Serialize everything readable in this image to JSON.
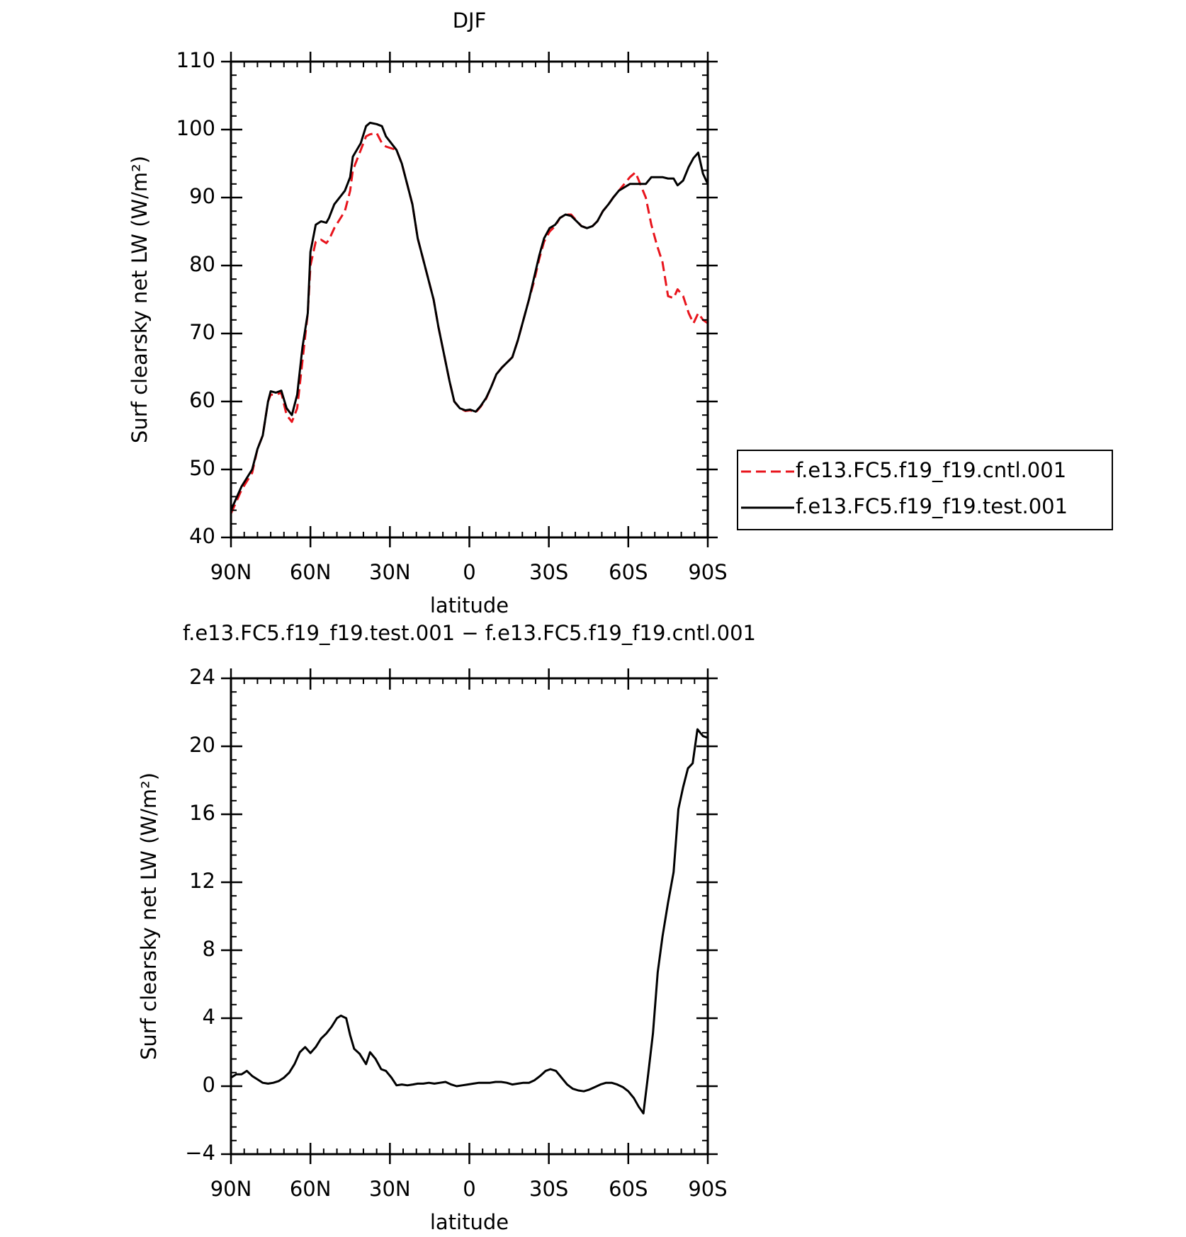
{
  "chart_data": [
    {
      "type": "line",
      "title": "DJF",
      "xlabel": "latitude",
      "ylabel": "Surf clearsky net LW (W/m²)",
      "xlim": [
        90,
        -90
      ],
      "ylim": [
        40,
        110
      ],
      "xticks": [
        {
          "value": 90,
          "label": "90N"
        },
        {
          "value": 60,
          "label": "60N"
        },
        {
          "value": 30,
          "label": "30N"
        },
        0,
        {
          "value": -30,
          "label": "30S"
        },
        {
          "value": -60,
          "label": "60S"
        },
        {
          "value": -90,
          "label": "90S"
        }
      ],
      "yticks": [
        40,
        50,
        60,
        70,
        80,
        90,
        100,
        110
      ],
      "legend": "right",
      "x": [
        90,
        86,
        82,
        80,
        78,
        76,
        75,
        73,
        71,
        69,
        67,
        65,
        63,
        61,
        60,
        58,
        56,
        54,
        53,
        51,
        47,
        45,
        44,
        41,
        39,
        37.5,
        35,
        33,
        31.5,
        27.5,
        25.5,
        23.5,
        21.5,
        19.5,
        17.5,
        15.5,
        13.5,
        11.7,
        9.6,
        7.5,
        5.7,
        3.6,
        1.5,
        -0.3,
        -2.4,
        -4.2,
        -6.3,
        -8.1,
        -10.2,
        -12.3,
        -16.2,
        -18.3,
        -20.4,
        -22.5,
        -24.3,
        -26.4,
        -28.2,
        -30.3,
        -32.4,
        -34.2,
        -36.3,
        -38.4,
        -40.5,
        -42.3,
        -44.4,
        -46.5,
        -48.3,
        -50.4,
        -52.5,
        -54.3,
        -56.4,
        -58.5,
        -60.6,
        -62.7,
        -64.5,
        -66.6,
        -68.7,
        -70.8,
        -72.9,
        -75,
        -77.1,
        -78.6,
        -80.7,
        -82.8,
        -84.6,
        -86.4,
        -88.2,
        -90
      ],
      "series": [
        {
          "name": "f.e13.FC5.f19_f19.cntl.001",
          "color": "#e8141c",
          "dash": "dashed",
          "values": [
            43.5,
            47,
            49.5,
            53,
            55,
            60,
            61,
            61,
            61.3,
            58,
            57,
            59,
            66,
            73,
            80,
            83.5,
            83.8,
            83.3,
            83.8,
            85.5,
            88,
            91,
            94,
            97,
            99,
            99.3,
            99.5,
            98,
            97.5,
            97,
            95,
            92,
            89,
            84,
            81,
            78,
            75,
            71,
            67,
            63,
            60,
            59,
            58.6,
            58.7,
            58.4,
            59.2,
            60.4,
            62,
            64,
            65,
            66.5,
            69,
            72,
            75,
            77.5,
            81,
            83.5,
            85,
            85.8,
            87,
            87.5,
            87.5,
            86.6,
            85.8,
            85.5,
            85.8,
            86.5,
            88,
            89,
            90,
            91,
            92,
            93,
            93.7,
            92,
            90,
            86,
            83,
            80.5,
            75.5,
            75.2,
            76.5,
            75.5,
            73,
            71.5,
            73,
            72,
            71.5
          ]
        },
        {
          "name": "f.e13.FC5.f19_f19.test.001",
          "color": "#000000",
          "dash": "solid",
          "values": [
            44,
            47.5,
            50,
            53,
            55,
            60,
            61.5,
            61.3,
            61.6,
            59,
            58,
            61,
            68,
            73,
            82,
            86,
            86.5,
            86.3,
            87,
            89,
            91,
            93,
            96,
            98,
            100.5,
            101,
            100.8,
            100.5,
            99,
            97,
            95,
            92,
            89,
            84,
            81,
            78,
            75,
            71,
            67,
            63,
            60,
            59,
            58.7,
            58.8,
            58.5,
            59.3,
            60.5,
            62,
            64,
            65,
            66.5,
            69,
            72,
            75,
            78,
            81.5,
            84,
            85.5,
            86,
            87,
            87.5,
            87.3,
            86.5,
            85.8,
            85.5,
            85.8,
            86.5,
            88,
            89,
            90,
            91,
            91.5,
            92,
            92,
            92,
            92,
            93,
            93,
            93,
            92.8,
            92.8,
            91.8,
            92.5,
            94.5,
            95.8,
            96.6,
            93.5,
            92
          ]
        }
      ]
    },
    {
      "type": "line",
      "title": "f.e13.FC5.f19_f19.test.001 − f.e13.FC5.f19_f19.cntl.001",
      "xlabel": "latitude",
      "ylabel": "Surf clearsky net LW (W/m²)",
      "xlim": [
        90,
        -90
      ],
      "ylim": [
        -4,
        24
      ],
      "xticks": [
        {
          "value": 90,
          "label": "90N"
        },
        {
          "value": 60,
          "label": "60N"
        },
        {
          "value": 30,
          "label": "30N"
        },
        0,
        {
          "value": -30,
          "label": "30S"
        },
        {
          "value": -60,
          "label": "60S"
        },
        {
          "value": -90,
          "label": "90S"
        }
      ],
      "yticks": [
        {
          "value": -4,
          "label": "−4"
        },
        0,
        4,
        8,
        12,
        16,
        20,
        24
      ],
      "x": [
        90,
        88,
        86,
        84,
        82,
        80,
        78,
        76,
        74,
        72,
        70,
        68,
        66,
        64,
        62,
        60,
        58,
        56,
        54,
        52,
        50,
        48.5,
        46.5,
        45,
        43.5,
        41.4,
        39,
        37.5,
        35.4,
        33.3,
        31.5,
        29.4,
        27.5,
        25.5,
        23.4,
        21.3,
        19.5,
        17.4,
        15.3,
        13.2,
        11.1,
        9,
        6.9,
        4.8,
        2.7,
        0.6,
        -1.5,
        -3.6,
        -5.7,
        -7.8,
        -9.9,
        -12,
        -14.1,
        -16.2,
        -18.3,
        -20.4,
        -22.5,
        -24.6,
        -26.7,
        -28.8,
        -30.6,
        -32.7,
        -34.8,
        -36.9,
        -39,
        -41.1,
        -43.2,
        -45.3,
        -47.4,
        -49.5,
        -51.6,
        -53.7,
        -55.8,
        -57.9,
        -60,
        -62.1,
        -63.9,
        -65.7,
        -67.5,
        -69.3,
        -71.1,
        -72.9,
        -75,
        -77.1,
        -78.9,
        -80.7,
        -82.5,
        -84.3,
        -86.1,
        -88.2,
        -90
      ],
      "series": [
        {
          "color": "#000000",
          "dash": "solid",
          "values": [
            0.5,
            0.7,
            0.7,
            0.9,
            0.6,
            0.4,
            0.2,
            0.15,
            0.2,
            0.3,
            0.5,
            0.8,
            1.3,
            2,
            2.3,
            1.95,
            2.3,
            2.8,
            3.1,
            3.5,
            4.0,
            4.15,
            4.0,
            3.0,
            2.2,
            1.9,
            1.3,
            2.0,
            1.6,
            1.0,
            0.9,
            0.5,
            0.05,
            0.1,
            0.05,
            0.1,
            0.15,
            0.15,
            0.2,
            0.15,
            0.2,
            0.25,
            0.1,
            0.0,
            0.05,
            0.1,
            0.15,
            0.2,
            0.2,
            0.2,
            0.25,
            0.25,
            0.2,
            0.1,
            0.15,
            0.2,
            0.2,
            0.35,
            0.6,
            0.9,
            1.0,
            0.9,
            0.5,
            0.1,
            -0.15,
            -0.25,
            -0.3,
            -0.2,
            -0.05,
            0.1,
            0.2,
            0.2,
            0.1,
            -0.05,
            -0.3,
            -0.7,
            -1.2,
            -1.6,
            0.7,
            3.1,
            6.7,
            8.8,
            10.8,
            12.6,
            16.3,
            17.6,
            18.7,
            19.0,
            21.0,
            20.6,
            20.5
          ]
        }
      ]
    }
  ]
}
